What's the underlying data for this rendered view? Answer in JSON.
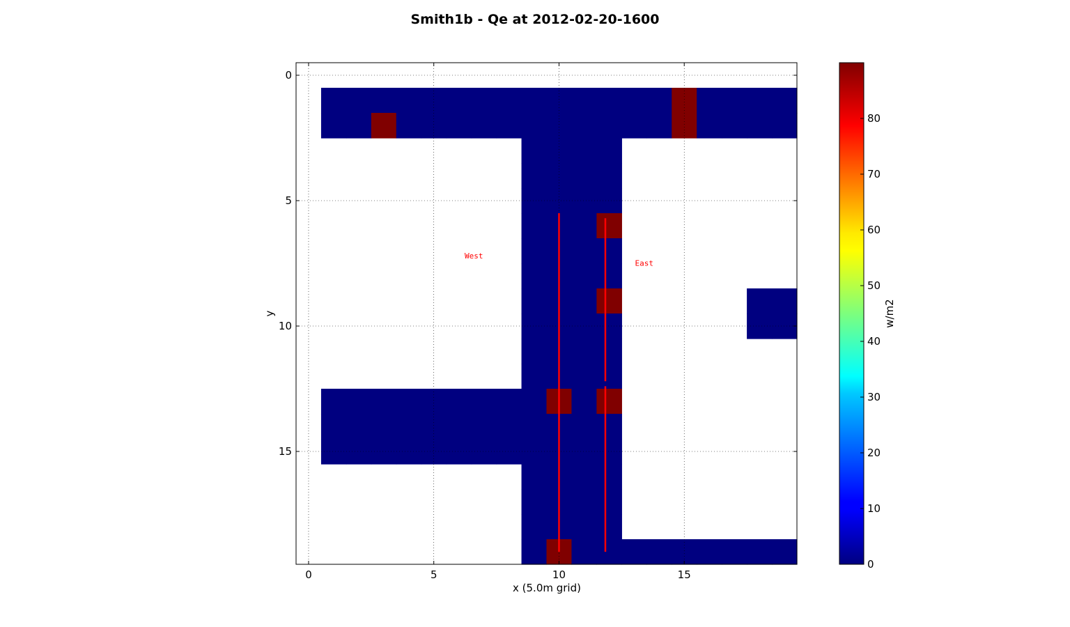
{
  "chart_data": {
    "type": "heatmap",
    "title": "Smith1b - Qe at 2012-02-20-1600",
    "xlabel": "x (5.0m grid)",
    "ylabel": "y",
    "xlim": [
      -0.5,
      19.5
    ],
    "ylim": [
      19.5,
      -0.5
    ],
    "x_ticks": [
      0,
      5,
      10,
      15
    ],
    "y_ticks": [
      0,
      5,
      10,
      15
    ],
    "grid": true,
    "grid_shape": [
      20,
      20
    ],
    "value_range": [
      0,
      90
    ],
    "colormap": "jet",
    "cells_low_value": 0,
    "cells_high_value": 90,
    "low_regions": [
      {
        "x": [
          1,
          19
        ],
        "y": [
          1,
          2
        ]
      },
      {
        "x": [
          9,
          12
        ],
        "y": [
          3,
          19
        ]
      },
      {
        "x": [
          1,
          8
        ],
        "y": [
          13,
          15
        ]
      },
      {
        "x": [
          18,
          19
        ],
        "y": [
          9,
          10
        ]
      },
      {
        "x": [
          13,
          19
        ],
        "y": [
          19,
          19
        ]
      }
    ],
    "high_cells": [
      {
        "x": 3,
        "y": 2
      },
      {
        "x": 15,
        "y": 1
      },
      {
        "x": 15,
        "y": 2
      },
      {
        "x": 12,
        "y": 6
      },
      {
        "x": 12,
        "y": 9
      },
      {
        "x": 10,
        "y": 13
      },
      {
        "x": 12,
        "y": 13
      },
      {
        "x": 10,
        "y": 19
      }
    ],
    "lines": [
      {
        "x": [
          10.0,
          10.0
        ],
        "y": [
          5.5,
          19.0
        ],
        "color": "#ff0000"
      },
      {
        "x": [
          11.85,
          11.85
        ],
        "y": [
          5.7,
          12.2
        ],
        "color": "#ff0000"
      },
      {
        "x": [
          11.85,
          11.85
        ],
        "y": [
          12.4,
          19.0
        ],
        "color": "#ff0000"
      }
    ],
    "annotations": [
      {
        "text": "West",
        "x": 6.6,
        "y": 7.3
      },
      {
        "text": "East",
        "x": 13.4,
        "y": 7.6
      }
    ],
    "colorbar": {
      "label": "w/m2",
      "ticks": [
        0,
        10,
        20,
        30,
        40,
        50,
        60,
        70,
        80
      ]
    }
  }
}
